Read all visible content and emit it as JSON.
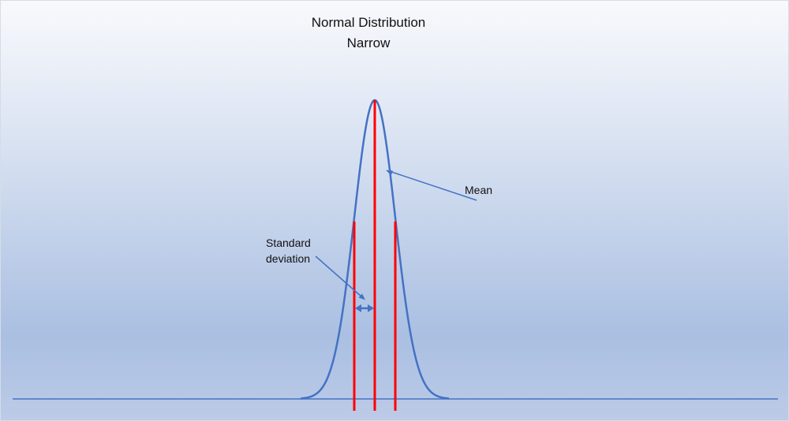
{
  "title": {
    "line1": "Normal Distribution",
    "line2": "Narrow"
  },
  "labels": {
    "mean": "Mean",
    "std_dev_line1": "Standard",
    "std_dev_line2": "deviation"
  },
  "colors": {
    "curve": "#4472c4",
    "markers": "#ff0000",
    "annotation": "#4472c4",
    "baseline": "#4472c4"
  }
}
